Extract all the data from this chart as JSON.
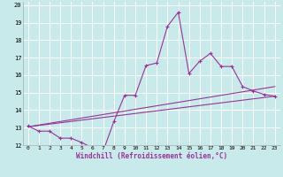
{
  "background_color": "#c8eaea",
  "grid_color": "#ffffff",
  "line_color": "#993399",
  "xlabel": "Windchill (Refroidissement éolien,°C)",
  "xlim": [
    -0.5,
    23.5
  ],
  "ylim": [
    12,
    20.2
  ],
  "yticks": [
    12,
    13,
    14,
    15,
    16,
    17,
    18,
    19,
    20
  ],
  "xticks": [
    0,
    1,
    2,
    3,
    4,
    5,
    6,
    7,
    8,
    9,
    10,
    11,
    12,
    13,
    14,
    15,
    16,
    17,
    18,
    19,
    20,
    21,
    22,
    23
  ],
  "line1_x": [
    0,
    1,
    2,
    3,
    4,
    5,
    6,
    7,
    8,
    9,
    10,
    11,
    12,
    13,
    14,
    15,
    16,
    17,
    18,
    19,
    20,
    21,
    22,
    23
  ],
  "line1_y": [
    13.1,
    12.8,
    12.8,
    12.4,
    12.4,
    12.15,
    11.85,
    11.65,
    13.35,
    14.85,
    14.85,
    16.55,
    16.7,
    18.8,
    19.6,
    16.1,
    16.8,
    17.25,
    16.5,
    16.5,
    15.35,
    15.1,
    14.9,
    14.8
  ],
  "line2_x": [
    0,
    23
  ],
  "line2_y": [
    13.05,
    15.35
  ],
  "line3_x": [
    0,
    23
  ],
  "line3_y": [
    13.05,
    14.8
  ]
}
